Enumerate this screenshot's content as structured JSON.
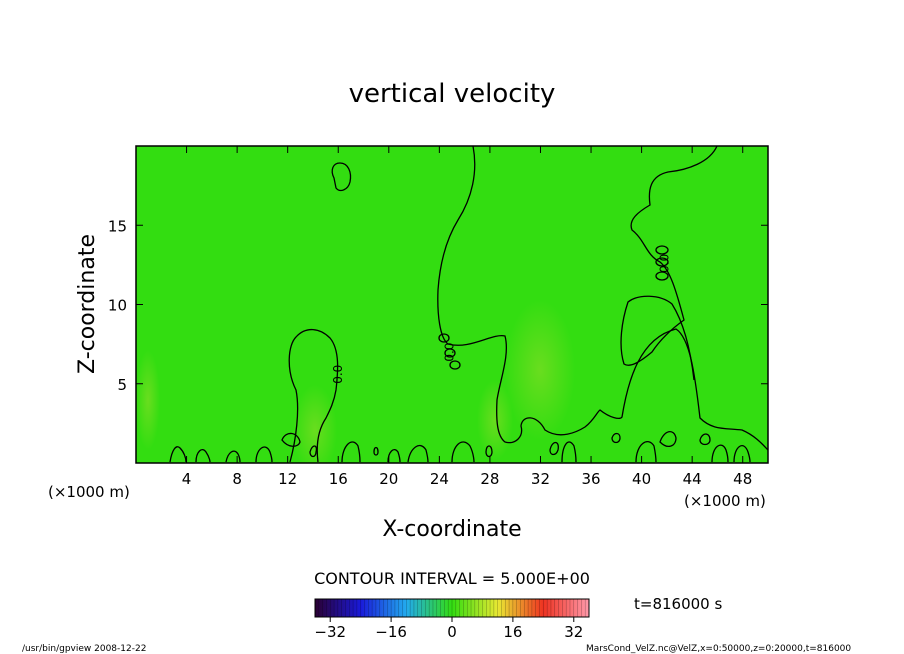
{
  "chart_data": {
    "type": "heatmap",
    "title": "vertical velocity",
    "xlabel": "X-coordinate",
    "ylabel": "Z-coordinate",
    "x_unit_left": "(×1000 m)",
    "x_unit_right": "(×1000 m)",
    "xlim": [
      0,
      50
    ],
    "ylim": [
      0,
      20
    ],
    "x_ticks": [
      4,
      8,
      12,
      16,
      20,
      24,
      28,
      32,
      36,
      40,
      44,
      48
    ],
    "y_ticks": [
      5,
      10,
      15
    ],
    "field_color": "#33dd11",
    "contour_color": "#000000",
    "contour_interval_text": "CONTOUR INTERVAL = 5.000E+00",
    "contour_labels": [
      {
        "text": "0.0",
        "x": 16.0,
        "y": 5.6
      },
      {
        "text": "0.0",
        "x": 24.8,
        "y": 7.0
      },
      {
        "text": "0.0",
        "x": 41.8,
        "y": 12.6
      }
    ],
    "colorbar": {
      "min": -36,
      "max": 36,
      "ticks": [
        -32,
        -16,
        0,
        16,
        32
      ],
      "colors": [
        "#2a0033",
        "#1a1ad9",
        "#22aaee",
        "#33dd11",
        "#e8e833",
        "#ee3322",
        "#ff99aa"
      ]
    },
    "time_label": "t=816000 s",
    "footer_left": "/usr/bin/gpview   2008-12-22",
    "footer_right": "MarsCond_VelZ.nc@VelZ,x=0:50000,z=0:20000,t=816000"
  }
}
